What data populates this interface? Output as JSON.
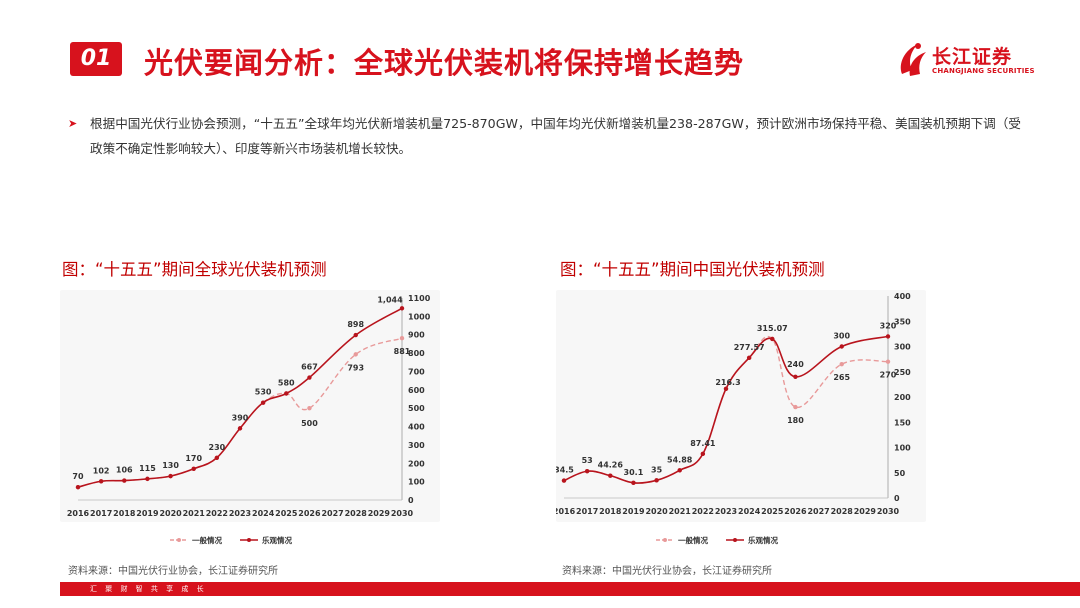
{
  "header": {
    "badge": "01",
    "title": "光伏要闻分析：全球光伏装机将保持增长趋势",
    "logo_name": "长江证券",
    "logo_en": "CHANGJIANG SECURITIES"
  },
  "bullet": {
    "text": "根据中国光伏行业协会预测，“十五五”全球年均光伏新增装机量725-870GW，中国年均光伏新增装机量238-287GW，预计欧洲市场保持平稳、美国装机预期下调（受政策不确定性影响较大）、印度等新兴市场装机增长较快。"
  },
  "colors": {
    "brand": "#d7121d",
    "normal_series": "#e89a9a",
    "optimistic_series": "#b8141d",
    "fig_title": "#c00000"
  },
  "chart_data": [
    {
      "type": "line",
      "title": "图：“十五五”期间全球光伏装机预测",
      "x": [
        "2016",
        "2017",
        "2018",
        "2019",
        "2020",
        "2021",
        "2022",
        "2023",
        "2024",
        "2025",
        "2026",
        "2027",
        "2028",
        "2029",
        "2030"
      ],
      "ylim": [
        0,
        1100
      ],
      "yticks": [
        0,
        100,
        200,
        300,
        400,
        500,
        600,
        700,
        800,
        900,
        1000,
        1100
      ],
      "y_axis_side": "right",
      "legend_position": "bottom",
      "series": [
        {
          "name": "一般情况",
          "style": "dashed",
          "values": [
            70,
            102,
            106,
            115,
            130,
            170,
            230,
            390,
            530,
            580,
            500,
            null,
            793,
            null,
            881
          ],
          "labels": {
            "10": "500",
            "12": "793",
            "14": "881"
          }
        },
        {
          "name": "乐观情况",
          "style": "solid",
          "values": [
            70,
            102,
            106,
            115,
            130,
            170,
            230,
            390,
            530,
            580,
            667,
            null,
            898,
            null,
            1044
          ],
          "labels": {
            "0": "70",
            "1": "102",
            "2": "106",
            "3": "115",
            "4": "130",
            "5": "170",
            "6": "230",
            "7": "390",
            "8": "530",
            "9": "580",
            "10": "667",
            "12": "898",
            "14": "1,044"
          }
        }
      ],
      "source": "资料来源：中国光伏行业协会，长江证券研究所"
    },
    {
      "type": "line",
      "title": "图：“十五五”期间中国光伏装机预测",
      "x": [
        "2016",
        "2017",
        "2018",
        "2019",
        "2020",
        "2021",
        "2022",
        "2023",
        "2024",
        "2025",
        "2026",
        "2027",
        "2028",
        "2029",
        "2030"
      ],
      "ylim": [
        0,
        400
      ],
      "yticks": [
        0,
        50,
        100,
        150,
        200,
        250,
        300,
        350,
        400
      ],
      "y_axis_side": "right",
      "legend_position": "bottom",
      "series": [
        {
          "name": "一般情况",
          "style": "dashed",
          "values": [
            34.5,
            53,
            44.26,
            30.1,
            35,
            54.88,
            87.41,
            216.3,
            277.57,
            315.07,
            180,
            null,
            265,
            null,
            270
          ],
          "labels": {
            "10": "180",
            "12": "265",
            "14": "270"
          }
        },
        {
          "name": "乐观情况",
          "style": "solid",
          "values": [
            34.5,
            53,
            44.26,
            30.1,
            35,
            54.88,
            87.41,
            216.3,
            277.57,
            315.07,
            240,
            null,
            300,
            null,
            320
          ],
          "labels": {
            "0": "34.5",
            "1": "53",
            "2": "44.26",
            "3": "30.1",
            "4": "35",
            "5": "54.88",
            "6": "87.41",
            "7": "216.3",
            "8": "277.57",
            "9": "315.07",
            "10": "240",
            "12": "300",
            "14": "320"
          }
        }
      ],
      "source": "资料来源：中国光伏行业协会，长江证券研究所"
    }
  ],
  "footer": {
    "text": "汇 聚 财 智      共 享 成 长"
  }
}
